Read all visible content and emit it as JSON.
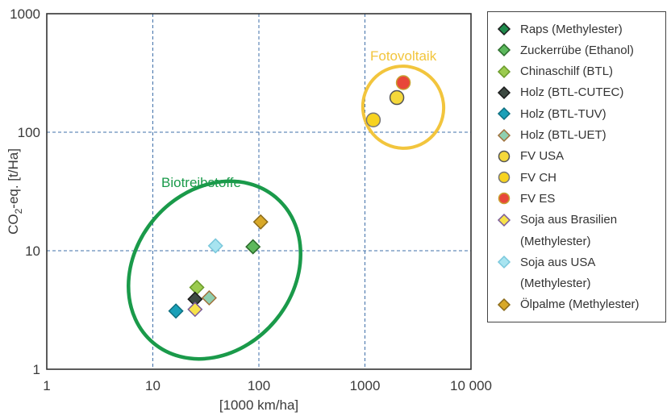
{
  "chart_data": {
    "type": "scatter",
    "x_scale": "log",
    "y_scale": "log",
    "xlim": [
      1,
      10000
    ],
    "ylim": [
      1,
      1000
    ],
    "x_ticks": [
      "1",
      "10",
      "100",
      "1000",
      "10 000"
    ],
    "y_ticks": [
      "1",
      "10",
      "100",
      "1000"
    ],
    "xlabel": "[1000 km/ha]",
    "ylabel": {
      "prefix": "CO",
      "sub": "2",
      "suffix": "-eq. [t/Ha]"
    },
    "grid": "dashed at decades",
    "legend_position": "right",
    "series": [
      {
        "name": "Raps (Methylester)",
        "marker": "diamond",
        "fill": "#1f8a4c",
        "stroke": "#1a1a1a",
        "points": []
      },
      {
        "name": "Zuckerrübe (Ethanol)",
        "marker": "diamond",
        "fill": "#5cb85c",
        "stroke": "#2a6a2a",
        "points": [
          {
            "x": 88,
            "y": 10.8
          }
        ]
      },
      {
        "name": "Chinaschilf (BTL)",
        "marker": "diamond",
        "fill": "#9bcb4f",
        "stroke": "#6a9a2a",
        "points": [
          {
            "x": 26,
            "y": 4.9
          }
        ]
      },
      {
        "name": "Holz (BTL-CUTEC)",
        "marker": "diamond",
        "fill": "#3d4a42",
        "stroke": "#1a1a1a",
        "points": [
          {
            "x": 25,
            "y": 3.9
          }
        ]
      },
      {
        "name": "Holz (BTL-TUV)",
        "marker": "diamond",
        "fill": "#1aa0b8",
        "stroke": "#0e6f80",
        "points": [
          {
            "x": 16.5,
            "y": 3.1
          }
        ]
      },
      {
        "name": "Holz (BTL-UET)",
        "marker": "diamond",
        "fill": "#8fcfb0",
        "stroke": "#a0703a",
        "points": [
          {
            "x": 34,
            "y": 4.0
          }
        ]
      },
      {
        "name": "FV USA",
        "marker": "circle",
        "fill": "#f5d83a",
        "stroke": "#555555",
        "points": [
          {
            "x": 2000,
            "y": 196
          }
        ]
      },
      {
        "name": "FV CH",
        "marker": "circle",
        "fill": "#f7d320",
        "stroke": "#777777",
        "points": [
          {
            "x": 1200,
            "y": 127
          }
        ]
      },
      {
        "name": "FV ES",
        "marker": "circle",
        "fill": "#e8473a",
        "stroke": "#c9a030",
        "points": [
          {
            "x": 2300,
            "y": 262
          }
        ]
      },
      {
        "name_lines": [
          "Soja aus Brasilien",
          "(Methylester)"
        ],
        "marker": "diamond",
        "fill": "#f7e24a",
        "stroke": "#7a5a9a",
        "points": [
          {
            "x": 25,
            "y": 3.2
          }
        ]
      },
      {
        "name_lines": [
          "Soja aus USA",
          "(Methylester)"
        ],
        "marker": "diamond",
        "fill": "#a8e4f0",
        "stroke": "#7ac8dc",
        "points": [
          {
            "x": 39,
            "y": 11.0
          }
        ]
      },
      {
        "name": "Ölpalme (Methylester)",
        "marker": "diamond",
        "fill": "#d8a828",
        "stroke": "#8a6a1a",
        "points": [
          {
            "x": 104,
            "y": 17.5
          }
        ]
      }
    ],
    "annotations": [
      {
        "text": "Biotreibstoffe",
        "color": "#1a9a4a"
      },
      {
        "text": "Fotovoltaik",
        "color": "#f2c53d"
      }
    ]
  }
}
